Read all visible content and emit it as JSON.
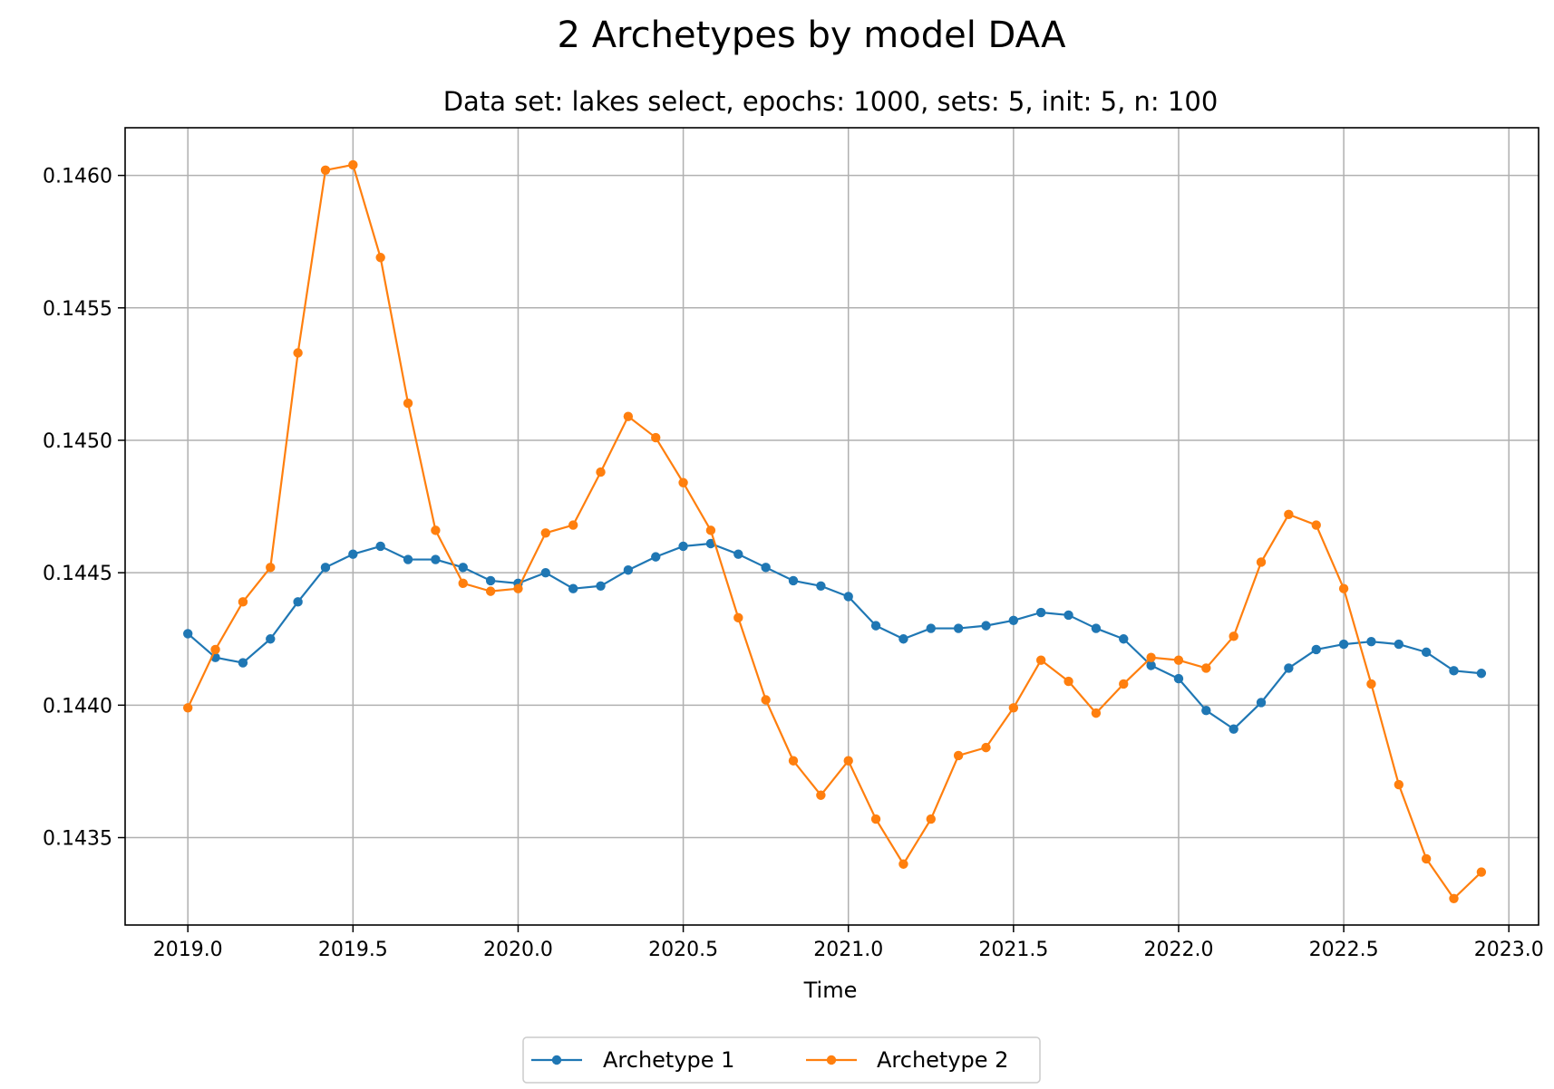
{
  "chart_data": {
    "type": "line",
    "title": "2 Archetypes by model DAA",
    "subtitle": "Data set: lakes select, epochs: 1000, sets: 5, init: 5, n: 100",
    "xlabel": "Time",
    "ylabel": "",
    "xlim": [
      2018.81,
      2023.09
    ],
    "ylim": [
      0.14317,
      0.14618
    ],
    "xticks": [
      2019.0,
      2019.5,
      2020.0,
      2020.5,
      2021.0,
      2021.5,
      2022.0,
      2022.5,
      2023.0
    ],
    "xtick_labels": [
      "2019.0",
      "2019.5",
      "2020.0",
      "2020.5",
      "2021.0",
      "2021.5",
      "2022.0",
      "2022.5",
      "2023.0"
    ],
    "yticks": [
      0.1435,
      0.144,
      0.1445,
      0.145,
      0.1455,
      0.146
    ],
    "ytick_labels": [
      "0.1435",
      "0.1440",
      "0.1445",
      "0.1450",
      "0.1455",
      "0.1460"
    ],
    "grid": true,
    "legend_position": "bottom-center",
    "x": [
      2019.0,
      2019.0833,
      2019.1667,
      2019.25,
      2019.3333,
      2019.4167,
      2019.5,
      2019.5833,
      2019.6667,
      2019.75,
      2019.8333,
      2019.9167,
      2020.0,
      2020.0833,
      2020.1667,
      2020.25,
      2020.3333,
      2020.4167,
      2020.5,
      2020.5833,
      2020.6667,
      2020.75,
      2020.8333,
      2020.9167,
      2021.0,
      2021.0833,
      2021.1667,
      2021.25,
      2021.3333,
      2021.4167,
      2021.5,
      2021.5833,
      2021.6667,
      2021.75,
      2021.8333,
      2021.9167,
      2022.0,
      2022.0833,
      2022.1667,
      2022.25,
      2022.3333,
      2022.4167,
      2022.5,
      2022.5833,
      2022.6667,
      2022.75,
      2022.8333,
      2022.9167
    ],
    "series": [
      {
        "name": "Archetype 1",
        "color": "#1f77b4",
        "values": [
          0.14427,
          0.14418,
          0.14416,
          0.14425,
          0.14439,
          0.14452,
          0.14457,
          0.1446,
          0.14455,
          0.14455,
          0.14452,
          0.14447,
          0.14446,
          0.1445,
          0.14444,
          0.14445,
          0.14451,
          0.14456,
          0.1446,
          0.14461,
          0.14457,
          0.14452,
          0.14447,
          0.14445,
          0.14441,
          0.1443,
          0.14425,
          0.14429,
          0.14429,
          0.1443,
          0.14432,
          0.14435,
          0.14434,
          0.14429,
          0.14425,
          0.14415,
          0.1441,
          0.14398,
          0.14391,
          0.14401,
          0.14414,
          0.14421,
          0.14423,
          0.14424,
          0.14423,
          0.1442,
          0.14413,
          0.14412
        ]
      },
      {
        "name": "Archetype 2",
        "color": "#ff7f0e",
        "values": [
          0.14399,
          0.14421,
          0.14439,
          0.14452,
          0.14533,
          0.14602,
          0.14604,
          0.14569,
          0.14514,
          0.14466,
          0.14446,
          0.14443,
          0.14444,
          0.14465,
          0.14468,
          0.14488,
          0.14509,
          0.14501,
          0.14484,
          0.14466,
          0.14433,
          0.14402,
          0.14379,
          0.14366,
          0.14379,
          0.14357,
          0.1434,
          0.14357,
          0.14381,
          0.14384,
          0.14399,
          0.14417,
          0.14409,
          0.14397,
          0.14408,
          0.14418,
          0.14417,
          0.14414,
          0.14426,
          0.14454,
          0.14472,
          0.14468,
          0.14444,
          0.14408,
          0.1437,
          0.14342,
          0.14327,
          0.14337
        ]
      }
    ]
  }
}
